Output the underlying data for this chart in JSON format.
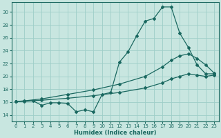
{
  "xlabel": "Humidex (Indice chaleur)",
  "background_color": "#c8e6e0",
  "grid_color": "#9ecec8",
  "line_color": "#1a6860",
  "xlim": [
    -0.5,
    23.5
  ],
  "ylim": [
    13.0,
    31.5
  ],
  "yticks": [
    14,
    16,
    18,
    20,
    22,
    24,
    26,
    28,
    30
  ],
  "xticks": [
    0,
    1,
    2,
    3,
    4,
    5,
    6,
    7,
    8,
    9,
    10,
    11,
    12,
    13,
    14,
    15,
    16,
    17,
    18,
    19,
    20,
    21,
    22,
    23
  ],
  "line1_x": [
    0,
    1,
    2,
    3,
    4,
    5,
    6,
    7,
    8,
    9,
    10,
    11,
    12,
    13,
    14,
    15,
    16,
    17,
    18,
    19,
    20,
    21,
    22,
    23
  ],
  "line1_y": [
    16.1,
    16.1,
    16.2,
    15.5,
    15.9,
    15.9,
    15.8,
    14.5,
    14.8,
    14.5,
    17.2,
    17.5,
    22.2,
    23.8,
    26.3,
    28.6,
    29.0,
    30.8,
    30.8,
    26.7,
    24.5,
    21.8,
    20.4,
    20.4
  ],
  "line2_x": [
    0,
    1,
    3,
    6,
    9,
    12,
    15,
    17,
    18,
    19,
    20,
    21,
    22,
    23
  ],
  "line2_y": [
    16.1,
    16.2,
    16.5,
    17.2,
    17.9,
    18.8,
    20.0,
    21.5,
    22.5,
    23.2,
    23.5,
    22.8,
    21.8,
    20.5
  ],
  "line3_x": [
    0,
    3,
    6,
    9,
    12,
    15,
    17,
    18,
    19,
    20,
    21,
    22,
    23
  ],
  "line3_y": [
    16.1,
    16.3,
    16.6,
    17.0,
    17.5,
    18.2,
    19.0,
    19.6,
    20.0,
    20.4,
    20.2,
    20.0,
    20.2
  ]
}
